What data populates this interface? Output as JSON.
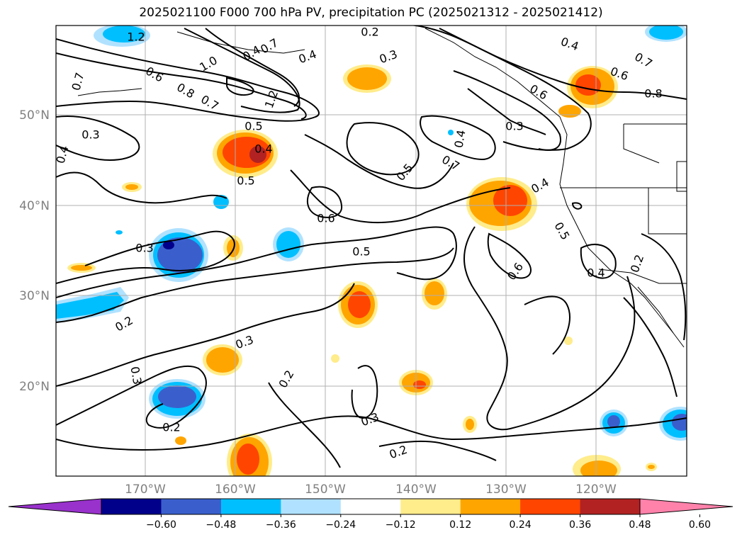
{
  "title": "2025021100 F000 700 hPa PV, precipitation PC (2025021312 - 2025021412)",
  "lat_labels": [
    "50°N",
    "40°N",
    "30°N",
    "20°N"
  ],
  "lon_labels": [
    "170°W",
    "160°W",
    "150°W",
    "140°W",
    "130°W",
    "120°W"
  ],
  "colorbar": {
    "ticks": [
      "−0.60",
      "−0.48",
      "−0.36",
      "−0.24",
      "−0.12",
      "0.12",
      "0.24",
      "0.36",
      "0.48",
      "0.60"
    ],
    "colors": [
      "#9932cc",
      "#00008b",
      "#3a5fcd",
      "#00bfff",
      "#b0e2ff",
      "#ffffff",
      "#ffec8b",
      "#ffa500",
      "#ff4500",
      "#b22222",
      "#ff82ab"
    ]
  },
  "contour_labels": [
    "1.2",
    "0.2",
    "0.4",
    "0.3",
    "0.4",
    "0.7",
    "0.7",
    "1.0",
    "0.6",
    "0.8",
    "0.7",
    "1.2",
    "0.5",
    "0.3",
    "0.4",
    "0.5",
    "0.4",
    "0.7",
    "0.6",
    "0.8",
    "0.6",
    "0.3",
    "0.4",
    "0.7",
    "0.5",
    "0.4",
    "0.5",
    "0.6",
    "0.4",
    "0.3",
    "0.5",
    "0.6",
    "0.4",
    "0.2",
    "0.2",
    "0.3",
    "0.3",
    "0.2",
    "0.2",
    "0.3",
    "0.2"
  ],
  "map_extent": {
    "lon": [
      -180,
      -110
    ],
    "lat": [
      10,
      60
    ]
  },
  "grid": true
}
